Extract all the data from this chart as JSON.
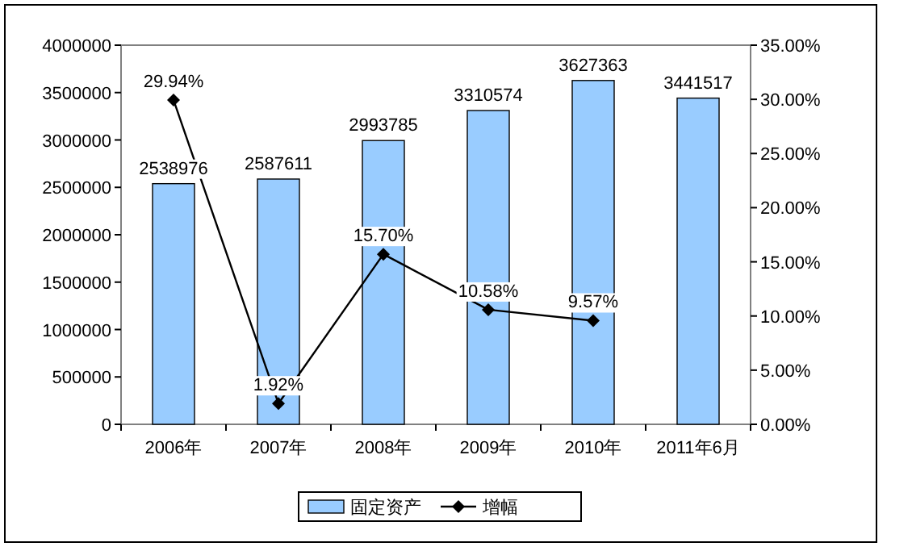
{
  "chart_data": {
    "type": "bar",
    "categories": [
      "2006年",
      "2007年",
      "2008年",
      "2009年",
      "2010年",
      "2011年6月"
    ],
    "series": [
      {
        "name": "固定资产",
        "color": "#99ccff",
        "values": [
          2538976,
          2587611,
          2993785,
          3310574,
          3627363,
          3441517
        ],
        "value_labels": [
          "2538976",
          "2587611",
          "2993785",
          "3310574",
          "3627363",
          "3441517"
        ]
      },
      {
        "name": "增幅",
        "type": "line",
        "axis": "y2",
        "color": "#000000",
        "marker": "diamond",
        "values": [
          29.94,
          1.92,
          15.7,
          10.58,
          9.57,
          null
        ],
        "value_labels": [
          "29.94%",
          "1.92%",
          "15.70%",
          "10.58%",
          "9.57%",
          null
        ]
      }
    ],
    "ylim": [
      0,
      4000000
    ],
    "yticks": [
      0,
      500000,
      1000000,
      1500000,
      2000000,
      2500000,
      3000000,
      3500000,
      4000000
    ],
    "y2lim": [
      0,
      35
    ],
    "y2ticks": [
      {
        "value": 0,
        "label": "0.00%"
      },
      {
        "value": 5,
        "label": "5.00%"
      },
      {
        "value": 10,
        "label": "10.00%"
      },
      {
        "value": 15,
        "label": "15.00%"
      },
      {
        "value": 20,
        "label": "20.00%"
      },
      {
        "value": 25,
        "label": "25.00%"
      },
      {
        "value": 30,
        "label": "30.00%"
      },
      {
        "value": 35,
        "label": "35.00%"
      }
    ],
    "legend": "bottom"
  }
}
